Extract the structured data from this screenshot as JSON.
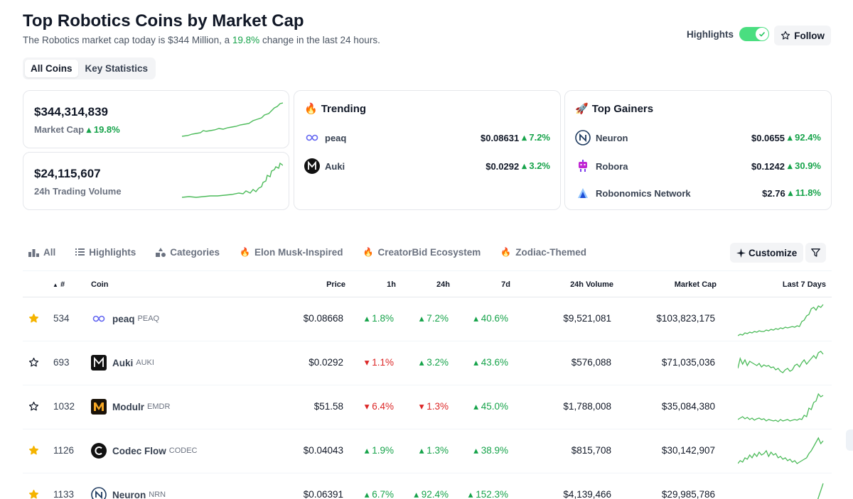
{
  "header": {
    "title": "Top Robotics Coins by Market Cap",
    "subtitle_prefix": "The Robotics market cap today is $344 Million, a",
    "subtitle_change": "19.8%",
    "subtitle_suffix": "change in the last 24 hours.",
    "highlights_label": "Highlights",
    "highlights_on": true,
    "follow_label": "Follow"
  },
  "tabs": [
    {
      "label": "All Coins",
      "active": true
    },
    {
      "label": "Key Statistics",
      "active": false
    }
  ],
  "stats": {
    "market_cap_value": "$344,314,839",
    "market_cap_label": "Market Cap",
    "market_cap_change": "19.8%",
    "volume_value": "$24,115,607",
    "volume_label": "24h Trading Volume"
  },
  "trending": {
    "title": "Trending",
    "items": [
      {
        "name": "peaq",
        "price": "$0.08631",
        "change": "7.2%",
        "icon": "peaq-logo"
      },
      {
        "name": "Auki",
        "price": "$0.0292",
        "change": "3.2%",
        "icon": "auki-logo"
      }
    ]
  },
  "gainers": {
    "title": "Top Gainers",
    "items": [
      {
        "name": "Neuron",
        "price": "$0.0655",
        "change": "92.4%",
        "icon": "neuron-logo"
      },
      {
        "name": "Robora",
        "price": "$0.1242",
        "change": "30.9%",
        "icon": "robora-logo"
      },
      {
        "name": "Robonomics Network",
        "price": "$2.76",
        "change": "11.8%",
        "icon": "robonomics-logo"
      }
    ]
  },
  "filters": [
    {
      "label": "All",
      "icon": "bar-chart-icon"
    },
    {
      "label": "Highlights",
      "icon": "list-icon"
    },
    {
      "label": "Categories",
      "icon": "shapes-icon"
    },
    {
      "label": "Elon Musk-Inspired",
      "icon": "fire-icon"
    },
    {
      "label": "CreatorBid Ecosystem",
      "icon": "fire-icon"
    },
    {
      "label": "Zodiac-Themed",
      "icon": "fire-icon"
    }
  ],
  "customize_label": "Customize",
  "table": {
    "headers": {
      "rank": "#",
      "coin": "Coin",
      "price": "Price",
      "h1": "1h",
      "h24": "24h",
      "d7": "7d",
      "volume": "24h Volume",
      "mcap": "Market Cap",
      "last7": "Last 7 Days"
    },
    "rows": [
      {
        "starred": true,
        "rank": "534",
        "name": "peaq",
        "symbol": "PEAQ",
        "price": "$0.08668",
        "h1": "1.8%",
        "h1_up": true,
        "h24": "7.2%",
        "h24_up": true,
        "d7": "40.6%",
        "d7_up": true,
        "volume": "$9,521,081",
        "mcap": "$103,823,175",
        "logo": "peaq-logo"
      },
      {
        "starred": false,
        "rank": "693",
        "name": "Auki",
        "symbol": "AUKI",
        "price": "$0.0292",
        "h1": "1.1%",
        "h1_up": false,
        "h24": "3.2%",
        "h24_up": true,
        "d7": "43.6%",
        "d7_up": true,
        "volume": "$576,088",
        "mcap": "$71,035,036",
        "logo": "auki-logo"
      },
      {
        "starred": false,
        "rank": "1032",
        "name": "Modulr",
        "symbol": "EMDR",
        "price": "$51.58",
        "h1": "6.4%",
        "h1_up": false,
        "h24": "1.3%",
        "h24_up": false,
        "d7": "45.0%",
        "d7_up": true,
        "volume": "$1,788,008",
        "mcap": "$35,084,380",
        "logo": "modulr-logo"
      },
      {
        "starred": true,
        "rank": "1126",
        "name": "Codec Flow",
        "symbol": "CODEC",
        "price": "$0.04043",
        "h1": "1.9%",
        "h1_up": true,
        "h24": "1.3%",
        "h24_up": true,
        "d7": "38.9%",
        "d7_up": true,
        "volume": "$815,708",
        "mcap": "$30,142,907",
        "logo": "codec-logo"
      },
      {
        "starred": true,
        "rank": "1133",
        "name": "Neuron",
        "symbol": "NRN",
        "price": "$0.06391",
        "h1": "6.7%",
        "h1_up": true,
        "h24": "92.4%",
        "h24_up": true,
        "d7": "152.3%",
        "d7_up": true,
        "volume": "$4,139,466",
        "mcap": "$29,985,786",
        "logo": "neuron-logo"
      }
    ]
  },
  "colors": {
    "up": "#16a34a",
    "down": "#dc2626",
    "star": "#f5b400",
    "spark": "#4cbb5a"
  }
}
